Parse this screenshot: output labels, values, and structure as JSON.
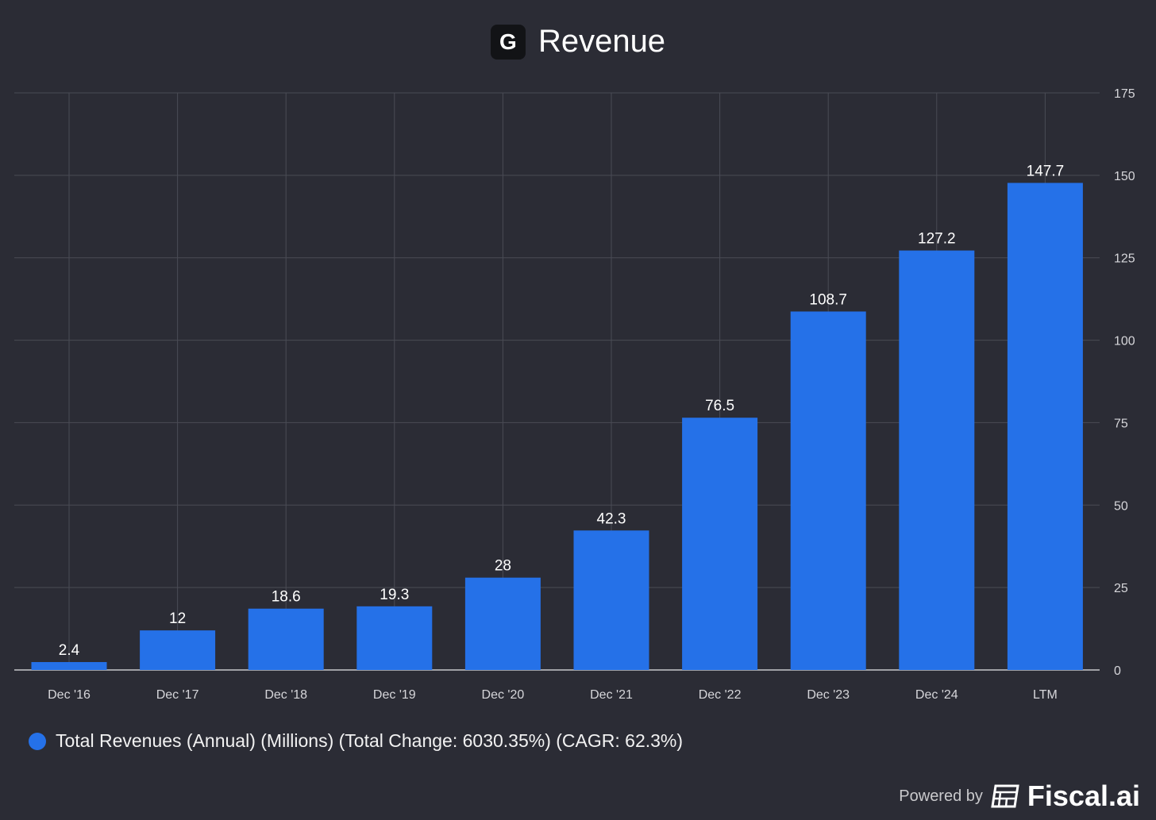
{
  "title": "Revenue",
  "logo_letter": "G",
  "chart_data": {
    "type": "bar",
    "title": "Revenue",
    "categories": [
      "Dec '16",
      "Dec '17",
      "Dec '18",
      "Dec '19",
      "Dec '20",
      "Dec '21",
      "Dec '22",
      "Dec '23",
      "Dec '24",
      "LTM"
    ],
    "values": [
      2.4,
      12,
      18.6,
      19.3,
      28,
      42.3,
      76.5,
      108.7,
      127.2,
      147.7
    ],
    "value_labels": [
      "2.4",
      "12",
      "18.6",
      "19.3",
      "28",
      "42.3",
      "76.5",
      "108.7",
      "127.2",
      "147.7"
    ],
    "ylim": [
      0,
      175
    ],
    "yticks": [
      0,
      25,
      50,
      75,
      100,
      125,
      150,
      175
    ],
    "y_axis_side": "right",
    "grid": true,
    "bar_color": "#2571e8",
    "legend_position": "bottom-left",
    "legend": "Total Revenues (Annual) (Millions) (Total Change: 6030.35%) (CAGR: 62.3%)"
  },
  "footer": {
    "powered_by": "Powered by",
    "brand": "Fiscal.ai"
  }
}
